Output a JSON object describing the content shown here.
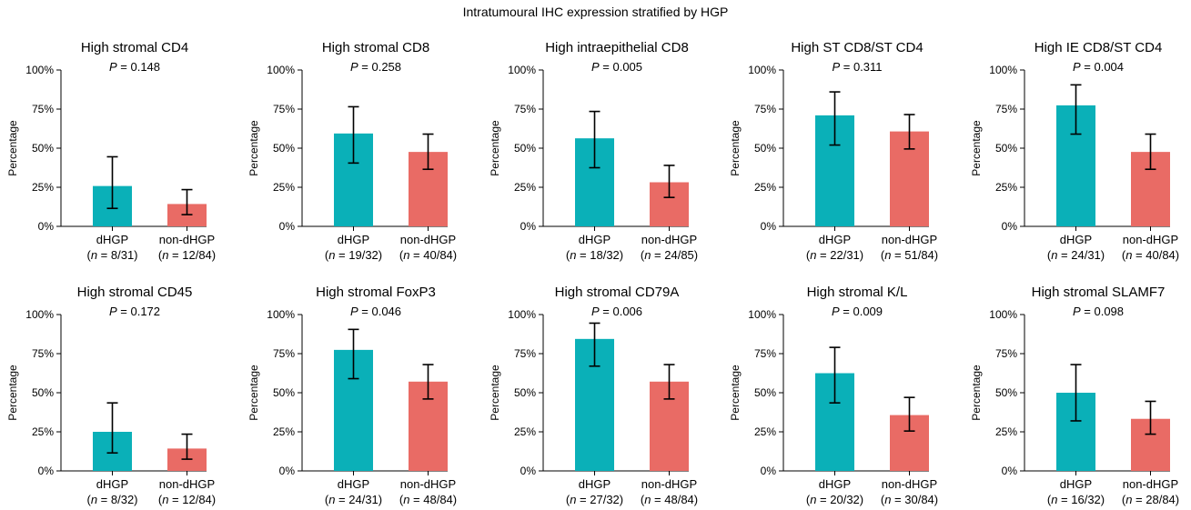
{
  "title": "Intratumoural IHC expression stratified by HGP",
  "colors": {
    "dHGP": "#0ab0b8",
    "non-dHGP": "#e96b65",
    "axis": "#000000"
  },
  "chart_data": [
    {
      "type": "bar",
      "title": "High stromal CD4",
      "pvalue": "0.148",
      "ylabel": "Percentage",
      "ylim": [
        0,
        100
      ],
      "yticks": [
        "0%",
        "25%",
        "50%",
        "75%",
        "100%"
      ],
      "categories": [
        "dHGP",
        "non-dHGP"
      ],
      "counts": [
        "8/31",
        "12/84"
      ],
      "values": [
        25.8,
        14.3
      ],
      "err_low": [
        11.5,
        7.5
      ],
      "err_high": [
        44.5,
        23.5
      ]
    },
    {
      "type": "bar",
      "title": "High stromal CD8",
      "pvalue": "0.258",
      "ylabel": "Percentage",
      "ylim": [
        0,
        100
      ],
      "yticks": [
        "0%",
        "25%",
        "50%",
        "75%",
        "100%"
      ],
      "categories": [
        "dHGP",
        "non-dHGP"
      ],
      "counts": [
        "19/32",
        "40/84"
      ],
      "values": [
        59.4,
        47.6
      ],
      "err_low": [
        40.5,
        36.5
      ],
      "err_high": [
        76.5,
        59.0
      ]
    },
    {
      "type": "bar",
      "title": "High intraepithelial CD8",
      "pvalue": "0.005",
      "ylabel": "Percentage",
      "ylim": [
        0,
        100
      ],
      "yticks": [
        "0%",
        "25%",
        "50%",
        "75%",
        "100%"
      ],
      "categories": [
        "dHGP",
        "non-dHGP"
      ],
      "counts": [
        "18/32",
        "24/85"
      ],
      "values": [
        56.3,
        28.2
      ],
      "err_low": [
        37.5,
        18.5
      ],
      "err_high": [
        73.5,
        39.0
      ]
    },
    {
      "type": "bar",
      "title": "High ST CD8/ST CD4",
      "pvalue": "0.311",
      "ylabel": "Percentage",
      "ylim": [
        0,
        100
      ],
      "yticks": [
        "0%",
        "25%",
        "50%",
        "75%",
        "100%"
      ],
      "categories": [
        "dHGP",
        "non-dHGP"
      ],
      "counts": [
        "22/31",
        "51/84"
      ],
      "values": [
        71.0,
        60.7
      ],
      "err_low": [
        52.0,
        49.5
      ],
      "err_high": [
        86.0,
        71.5
      ]
    },
    {
      "type": "bar",
      "title": "High IE CD8/ST CD4",
      "pvalue": "0.004",
      "ylabel": "Percentage",
      "ylim": [
        0,
        100
      ],
      "yticks": [
        "0%",
        "25%",
        "50%",
        "75%",
        "100%"
      ],
      "categories": [
        "dHGP",
        "non-dHGP"
      ],
      "counts": [
        "24/31",
        "40/84"
      ],
      "values": [
        77.4,
        47.6
      ],
      "err_low": [
        59.0,
        36.5
      ],
      "err_high": [
        90.5,
        59.0
      ]
    },
    {
      "type": "bar",
      "title": "High stromal CD45",
      "pvalue": "0.172",
      "ylabel": "Percentage",
      "ylim": [
        0,
        100
      ],
      "yticks": [
        "0%",
        "25%",
        "50%",
        "75%",
        "100%"
      ],
      "categories": [
        "dHGP",
        "non-dHGP"
      ],
      "counts": [
        "8/32",
        "12/84"
      ],
      "values": [
        25.0,
        14.3
      ],
      "err_low": [
        11.5,
        7.5
      ],
      "err_high": [
        43.5,
        23.5
      ]
    },
    {
      "type": "bar",
      "title": "High stromal FoxP3",
      "pvalue": "0.046",
      "ylabel": "Percentage",
      "ylim": [
        0,
        100
      ],
      "yticks": [
        "0%",
        "25%",
        "50%",
        "75%",
        "100%"
      ],
      "categories": [
        "dHGP",
        "non-dHGP"
      ],
      "counts": [
        "24/31",
        "48/84"
      ],
      "values": [
        77.4,
        57.1
      ],
      "err_low": [
        59.0,
        46.0
      ],
      "err_high": [
        90.5,
        68.0
      ]
    },
    {
      "type": "bar",
      "title": "High stromal CD79A",
      "pvalue": "0.006",
      "ylabel": "Percentage",
      "ylim": [
        0,
        100
      ],
      "yticks": [
        "0%",
        "25%",
        "50%",
        "75%",
        "100%"
      ],
      "categories": [
        "dHGP",
        "non-dHGP"
      ],
      "counts": [
        "27/32",
        "48/84"
      ],
      "values": [
        84.4,
        57.1
      ],
      "err_low": [
        67.0,
        46.0
      ],
      "err_high": [
        94.5,
        68.0
      ]
    },
    {
      "type": "bar",
      "title": "High stromal K/L",
      "pvalue": "0.009",
      "ylabel": "Percentage",
      "ylim": [
        0,
        100
      ],
      "yticks": [
        "0%",
        "25%",
        "50%",
        "75%",
        "100%"
      ],
      "categories": [
        "dHGP",
        "non-dHGP"
      ],
      "counts": [
        "20/32",
        "30/84"
      ],
      "values": [
        62.5,
        35.7
      ],
      "err_low": [
        43.5,
        25.5
      ],
      "err_high": [
        79.0,
        47.0
      ]
    },
    {
      "type": "bar",
      "title": "High stromal SLAMF7",
      "pvalue": "0.098",
      "ylabel": "Percentage",
      "ylim": [
        0,
        100
      ],
      "yticks": [
        "0%",
        "25%",
        "50%",
        "75%",
        "100%"
      ],
      "categories": [
        "dHGP",
        "non-dHGP"
      ],
      "counts": [
        "16/32",
        "28/84"
      ],
      "values": [
        50.0,
        33.3
      ],
      "err_low": [
        32.0,
        23.5
      ],
      "err_high": [
        68.0,
        44.5
      ]
    }
  ]
}
